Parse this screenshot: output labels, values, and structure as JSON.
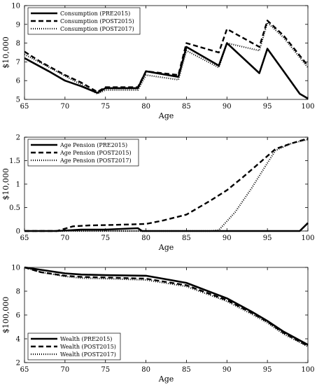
{
  "chart_data": [
    {
      "type": "line",
      "xlabel": "Age",
      "ylabel": "$10,000",
      "xlim": [
        65,
        100
      ],
      "ylim": [
        5,
        10
      ],
      "xticks": [
        "65",
        "70",
        "75",
        "80",
        "85",
        "90",
        "95",
        "100"
      ],
      "yticks": [
        "5",
        "6",
        "7",
        "8",
        "9",
        "10"
      ],
      "legend_position": "top-left",
      "series": [
        {
          "name": "Consumption (PRE2015)",
          "style": "solid",
          "x": [
            65,
            68,
            70,
            72,
            74,
            75,
            79,
            80,
            84,
            85,
            89,
            90,
            94,
            95,
            97,
            99,
            100
          ],
          "y": [
            7.2,
            6.5,
            6.0,
            5.7,
            5.35,
            5.6,
            5.6,
            6.5,
            6.2,
            7.8,
            6.8,
            8.0,
            6.4,
            7.7,
            6.5,
            5.3,
            5.05
          ]
        },
        {
          "name": "Consumption (POST2015)",
          "style": "dashed",
          "x": [
            65,
            67,
            70,
            72,
            74,
            75,
            79,
            80,
            84,
            85,
            89,
            90,
            94,
            95,
            97,
            100
          ],
          "y": [
            7.55,
            7.0,
            6.3,
            5.9,
            5.4,
            5.65,
            5.65,
            6.5,
            6.3,
            8.0,
            7.5,
            8.75,
            7.8,
            9.2,
            8.4,
            6.8
          ]
        },
        {
          "name": "Consumption (POST2017)",
          "style": "dotted",
          "x": [
            65,
            67,
            70,
            72,
            74,
            75,
            79,
            80,
            84,
            85,
            89,
            90,
            94,
            95,
            97,
            100
          ],
          "y": [
            7.4,
            6.95,
            6.25,
            5.8,
            5.3,
            5.5,
            5.5,
            6.3,
            6.05,
            7.6,
            6.7,
            8.0,
            7.6,
            9.1,
            8.3,
            6.7
          ]
        }
      ]
    },
    {
      "type": "line",
      "xlabel": "Age",
      "ylabel": "$10,000",
      "xlim": [
        65,
        100
      ],
      "ylim": [
        0,
        2
      ],
      "xticks": [
        "65",
        "70",
        "75",
        "80",
        "85",
        "90",
        "95",
        "100"
      ],
      "yticks": [
        "0",
        "0.5",
        "1",
        "1.5",
        "2"
      ],
      "legend_position": "top-left",
      "series": [
        {
          "name": "Age Pension (PRE2015)",
          "style": "solid",
          "x": [
            65,
            69,
            72,
            75,
            79,
            79.5,
            99,
            100
          ],
          "y": [
            0,
            0,
            0.03,
            0.03,
            0.06,
            0,
            0,
            0.17
          ]
        },
        {
          "name": "Age Pension (POST2015)",
          "style": "dashed",
          "x": [
            65,
            69,
            71,
            73,
            76,
            80,
            82,
            85,
            88,
            90,
            92,
            94,
            96,
            98,
            100
          ],
          "y": [
            0,
            0,
            0.1,
            0.12,
            0.13,
            0.15,
            0.22,
            0.35,
            0.65,
            0.87,
            1.15,
            1.45,
            1.75,
            1.87,
            1.97
          ]
        },
        {
          "name": "Age Pension (POST2017)",
          "style": "dotted",
          "x": [
            65,
            88,
            89,
            91,
            93,
            95,
            96,
            98,
            100
          ],
          "y": [
            0,
            0,
            0.02,
            0.4,
            0.9,
            1.45,
            1.72,
            1.87,
            1.95
          ]
        }
      ]
    },
    {
      "type": "line",
      "xlabel": "Age",
      "ylabel": "$100,000",
      "xlim": [
        65,
        100
      ],
      "ylim": [
        2,
        10
      ],
      "xticks": [
        "65",
        "70",
        "75",
        "80",
        "85",
        "90",
        "95",
        "100"
      ],
      "yticks": [
        "2",
        "4",
        "6",
        "8",
        "10"
      ],
      "legend_position": "bottom-left",
      "series": [
        {
          "name": "Wealth (PRE2015)",
          "style": "solid",
          "x": [
            65,
            67,
            70,
            72,
            75,
            80,
            85,
            90,
            93,
            95,
            97,
            100
          ],
          "y": [
            10.0,
            9.8,
            9.5,
            9.4,
            9.35,
            9.3,
            8.7,
            7.4,
            6.3,
            5.5,
            4.6,
            3.5
          ]
        },
        {
          "name": "Wealth (POST2015)",
          "style": "dashed",
          "x": [
            65,
            67,
            70,
            72,
            75,
            80,
            85,
            90,
            93,
            95,
            97,
            100
          ],
          "y": [
            10.0,
            9.6,
            9.3,
            9.2,
            9.15,
            9.05,
            8.5,
            7.25,
            6.2,
            5.45,
            4.5,
            3.4
          ]
        },
        {
          "name": "Wealth (POST2017)",
          "style": "dotted",
          "x": [
            65,
            67,
            70,
            72,
            75,
            80,
            85,
            90,
            93,
            95,
            97,
            100
          ],
          "y": [
            10.0,
            9.6,
            9.25,
            9.1,
            9.05,
            8.95,
            8.4,
            7.15,
            6.1,
            5.35,
            4.4,
            3.35
          ]
        }
      ]
    }
  ]
}
